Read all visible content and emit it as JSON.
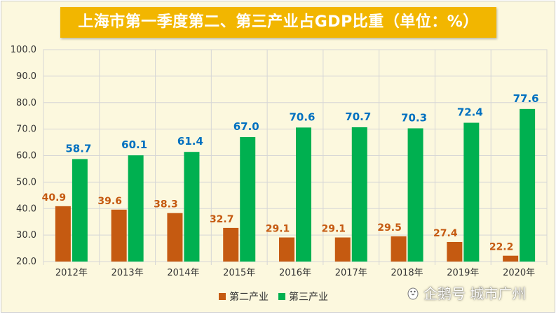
{
  "title": "上海市第一季度第二、第三产业占GDP比重（单位：%）",
  "watermark": "企鹅号 城市广州",
  "watermark_icon": "penguin-icon",
  "colors": {
    "secondary": "#c55a11",
    "tertiary": "#00b050",
    "secondary_label": "#c55a11",
    "tertiary_label": "#0070c0",
    "background": "#fcf8de",
    "title_bg": "#f2b600"
  },
  "chart_data": {
    "type": "bar",
    "categories": [
      "2012年",
      "2013年",
      "2014年",
      "2015年",
      "2016年",
      "2017年",
      "2018年",
      "2019年",
      "2020年"
    ],
    "series": [
      {
        "name": "第二产业",
        "values": [
          40.9,
          39.6,
          38.3,
          32.7,
          29.1,
          29.1,
          29.5,
          27.4,
          22.2
        ]
      },
      {
        "name": "第三产业",
        "values": [
          58.7,
          60.1,
          61.4,
          67.0,
          70.6,
          70.7,
          70.3,
          72.4,
          77.6
        ]
      }
    ],
    "value_labels": {
      "第二产业": [
        "40.9",
        "39.6",
        "38.3",
        "32.7",
        "29.1",
        "29.1",
        "29.5",
        "27.4",
        "22.2"
      ],
      "第三产业": [
        "58.7",
        "60.1",
        "61.4",
        "67.0",
        "70.6",
        "70.7",
        "70.3",
        "72.4",
        "77.6"
      ]
    },
    "yticks": [
      "20.0",
      "30.0",
      "40.0",
      "50.0",
      "60.0",
      "70.0",
      "80.0",
      "90.0",
      "100.0"
    ],
    "ylim": [
      20,
      100
    ],
    "grid": true,
    "legend": "bottom",
    "title": "上海市第一季度第二、第三产业占GDP比重（单位：%）",
    "xlabel": "",
    "ylabel": ""
  }
}
